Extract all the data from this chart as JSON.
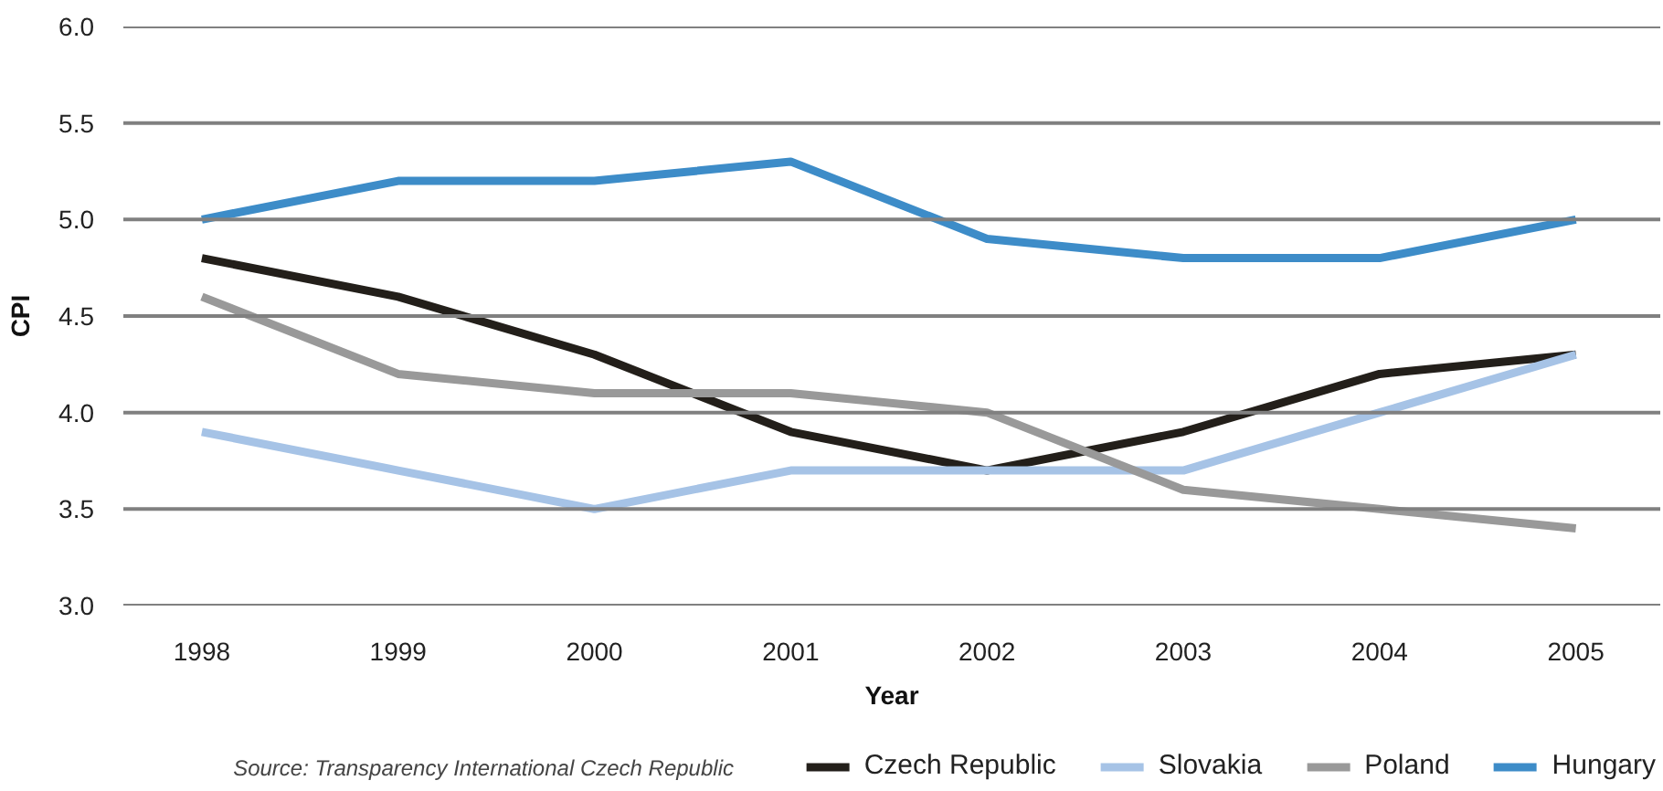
{
  "chart_data": {
    "type": "line",
    "xlabel": "Year",
    "ylabel": "CPI",
    "categories": [
      "1998",
      "1999",
      "2000",
      "2001",
      "2002",
      "2003",
      "2004",
      "2005"
    ],
    "ylim": [
      3,
      6
    ],
    "yticks": [
      {
        "value": 3,
        "label": "3.0"
      },
      3.5,
      {
        "value": 4,
        "label": "4.0"
      },
      4.5,
      {
        "value": 5,
        "label": "5.0"
      },
      5.5,
      {
        "value": 6,
        "label": "6.0"
      }
    ],
    "grid": "y",
    "legend": "bottom right",
    "marker": "none",
    "line_style": "solid",
    "series": [
      {
        "name": "Czech Republic",
        "color": "#231f1a",
        "values": [
          4.8,
          4.6,
          4.3,
          3.9,
          3.7,
          3.9,
          4.2,
          4.3
        ]
      },
      {
        "name": "Slovakia",
        "color": "#a6c3e6",
        "values": [
          3.9,
          3.7,
          3.5,
          3.7,
          3.7,
          3.7,
          4.0,
          4.3
        ]
      },
      {
        "name": "Poland",
        "color": "#999999",
        "values": [
          4.6,
          4.2,
          4.1,
          4.1,
          4.0,
          3.6,
          3.5,
          3.4
        ]
      },
      {
        "name": "Hungary",
        "color": "#3d8cc8",
        "values": [
          5.0,
          5.2,
          5.2,
          5.3,
          4.9,
          4.8,
          4.8,
          5.0
        ]
      }
    ],
    "annotations": [
      "Source: Transparency International Czech Republic"
    ]
  }
}
